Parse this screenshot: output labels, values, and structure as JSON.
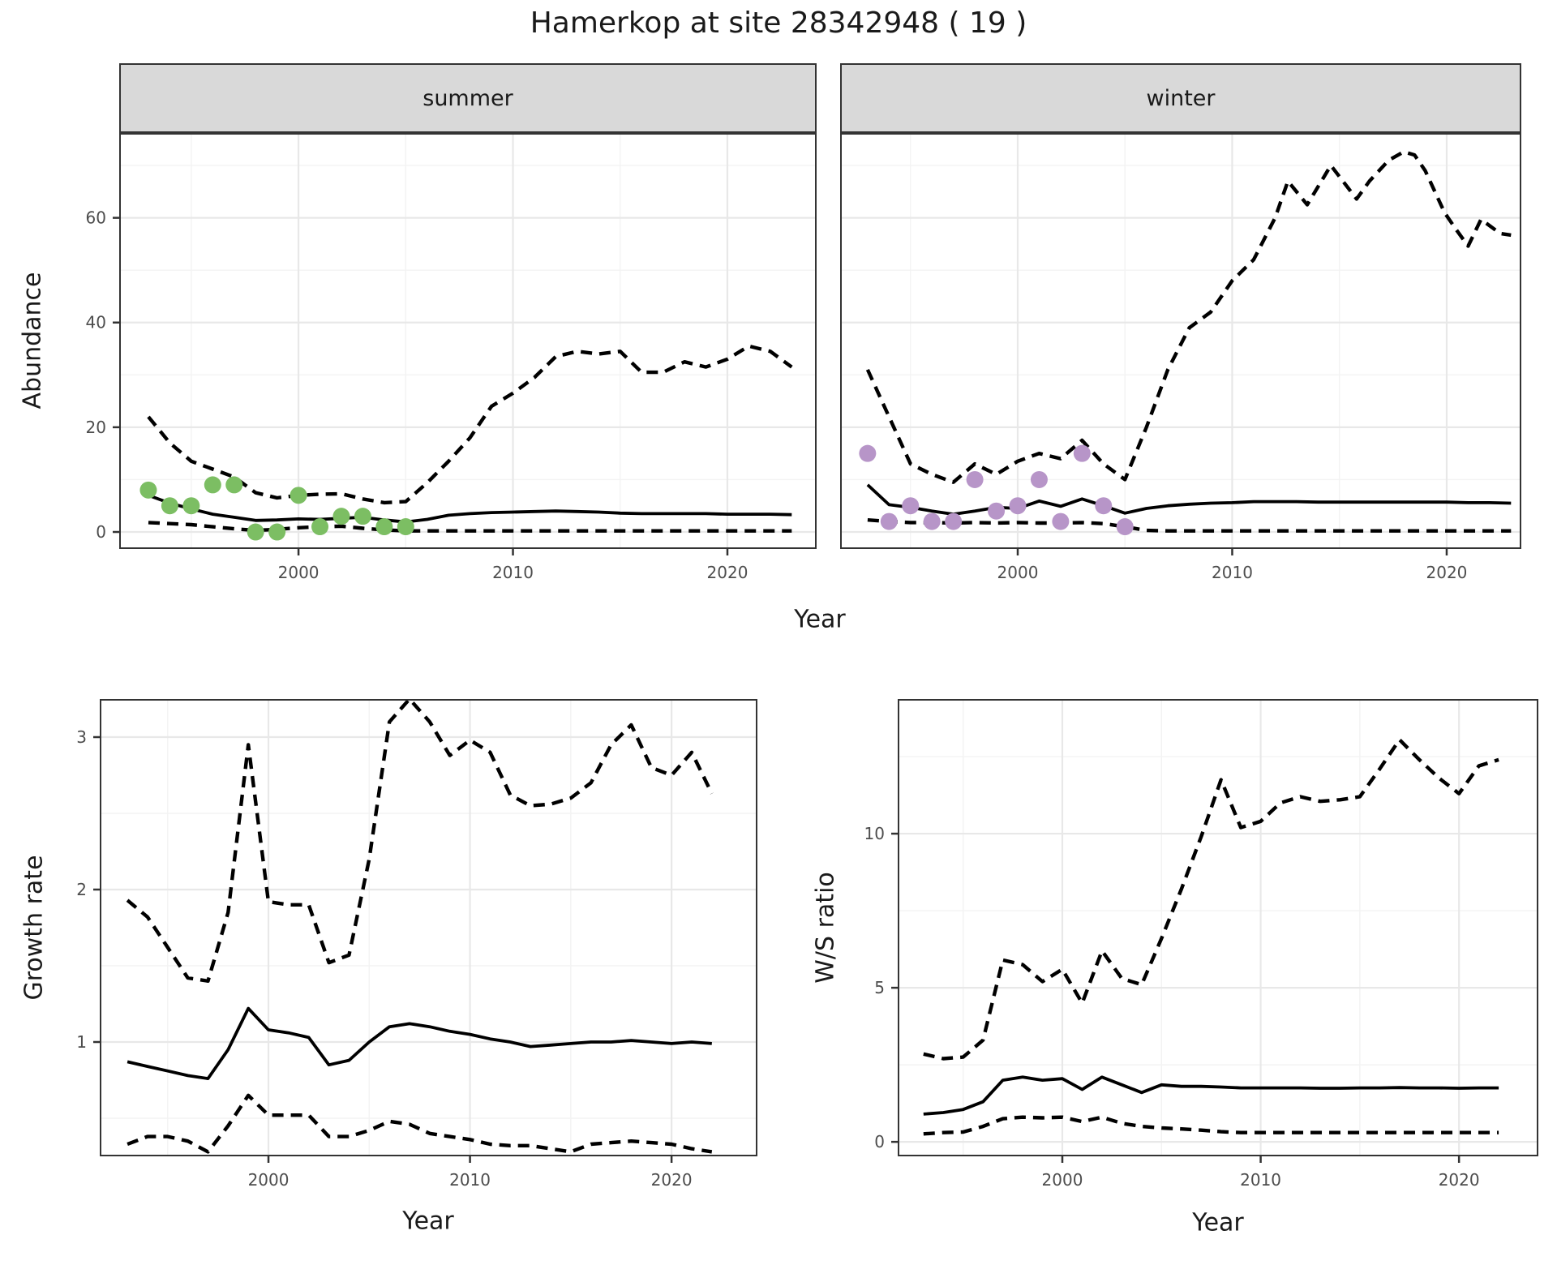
{
  "title": "Hamerkop at site 28342948 ( 19 )",
  "facets": [
    {
      "label": "summer"
    },
    {
      "label": "winter"
    }
  ],
  "axis_labels": {
    "abundance": "Abundance",
    "year": "Year",
    "growth": "Growth rate",
    "ws": "W/S ratio"
  },
  "colors": {
    "summer_point": "#7cbe63",
    "winter_point": "#b795c8",
    "line": "#000000",
    "grid_major": "#e8e8e8",
    "grid_minor": "#f3f3f3",
    "strip_bg": "#d9d9d9",
    "tick_text": "#4d4d4d",
    "panel_border": "#333333"
  },
  "chart_data": [
    {
      "type": "line",
      "facet": "summer",
      "xlabel": "Year",
      "ylabel": "Abundance",
      "xlim": [
        1991.64,
        2024.16
      ],
      "ylim": [
        -3.25,
        76.2
      ],
      "x_ticks": [
        2000,
        2010,
        2020
      ],
      "x_minor": [
        1995,
        2005,
        2015
      ],
      "y_ticks": [
        0,
        20,
        40,
        60
      ],
      "y_minor": [
        10,
        30,
        50,
        70
      ],
      "series": [
        {
          "name": "upper-ci",
          "style": "dashed",
          "x": [
            1993,
            1994,
            1995,
            1996,
            1997,
            1998,
            1999,
            2000,
            2001,
            2002,
            2003,
            2004,
            2005,
            2006,
            2007,
            2008,
            2009,
            2010,
            2011,
            2012,
            2013,
            2014,
            2015,
            2016,
            2017,
            2018,
            2019,
            2020,
            2021,
            2022,
            2023
          ],
          "y": [
            22,
            17,
            13.5,
            12,
            10.5,
            7.5,
            6.5,
            7,
            7.2,
            7.3,
            6.3,
            5.6,
            5.8,
            9.4,
            13.5,
            18,
            24,
            26.5,
            29.5,
            33.5,
            34.5,
            34,
            34.5,
            30.5,
            30.5,
            32.5,
            31.5,
            33,
            35.5,
            34.5,
            31.5
          ]
        },
        {
          "name": "median",
          "style": "solid",
          "x": [
            1993,
            1994,
            1995,
            1996,
            1997,
            1998,
            1999,
            2000,
            2001,
            2002,
            2003,
            2004,
            2005,
            2006,
            2007,
            2008,
            2009,
            2010,
            2011,
            2012,
            2013,
            2014,
            2015,
            2016,
            2017,
            2018,
            2019,
            2020,
            2021,
            2022,
            2023
          ],
          "y": [
            7,
            5.5,
            4.4,
            3.4,
            2.8,
            2.2,
            2.3,
            2.5,
            2.4,
            2.6,
            2.8,
            2.3,
            1.9,
            2.4,
            3.2,
            3.5,
            3.7,
            3.8,
            3.9,
            4,
            3.9,
            3.8,
            3.6,
            3.5,
            3.5,
            3.5,
            3.5,
            3.4,
            3.4,
            3.4,
            3.3
          ]
        },
        {
          "name": "lower-ci",
          "style": "dashed",
          "x": [
            1993,
            1994,
            1995,
            1996,
            1997,
            1998,
            1999,
            2000,
            2001,
            2002,
            2003,
            2004,
            2005,
            2006,
            2007,
            2008,
            2009,
            2010,
            2011,
            2012,
            2013,
            2014,
            2015,
            2016,
            2017,
            2018,
            2019,
            2020,
            2021,
            2022,
            2023
          ],
          "y": [
            1.8,
            1.6,
            1.4,
            1,
            0.6,
            0.3,
            0.5,
            0.8,
            1,
            1.1,
            0.7,
            0.4,
            0.2,
            0.2,
            0.2,
            0.2,
            0.2,
            0.2,
            0.2,
            0.2,
            0.2,
            0.2,
            0.2,
            0.2,
            0.2,
            0.2,
            0.2,
            0.2,
            0.2,
            0.2,
            0.2
          ]
        },
        {
          "name": "observed",
          "style": "points",
          "color": "#7cbe63",
          "x": [
            1993,
            1994,
            1995,
            1996,
            1997,
            1998,
            1999,
            2000,
            2001,
            2002,
            2003,
            2004,
            2005
          ],
          "y": [
            8,
            5,
            5,
            9,
            9,
            0,
            0,
            7,
            1,
            3,
            3,
            1,
            1
          ]
        }
      ]
    },
    {
      "type": "line",
      "facet": "winter",
      "xlabel": "Year",
      "ylabel": "Abundance",
      "xlim": [
        1991.72,
        2023.48
      ],
      "ylim": [
        -3.25,
        76.2
      ],
      "x_ticks": [
        2000,
        2010,
        2020
      ],
      "x_minor": [
        1995,
        2005,
        2015
      ],
      "y_ticks": [
        0,
        20,
        40,
        60
      ],
      "y_minor": [
        10,
        30,
        50,
        70
      ],
      "series": [
        {
          "name": "upper-ci",
          "style": "dashed",
          "x": [
            1993,
            1994,
            1995,
            1996,
            1997,
            1998,
            1999,
            2000,
            2001,
            2002,
            2003,
            2004,
            2005,
            2006,
            2007,
            2008,
            2009,
            2010,
            2011,
            2012,
            2012.6,
            2013.5,
            2014.6,
            2015.8,
            2016.4,
            2017.3,
            2018,
            2018.5,
            2019,
            2019.9,
            2020.4,
            2021,
            2021.6,
            2022.5,
            2023
          ],
          "y": [
            31,
            22,
            13,
            11,
            9.5,
            13,
            11,
            13.5,
            15,
            14,
            17.5,
            13,
            10,
            20,
            31,
            39,
            42,
            48,
            52,
            60,
            67,
            62.5,
            70,
            63.6,
            67,
            71,
            72.6,
            72,
            69,
            61,
            58,
            54.6,
            59.7,
            57,
            56.7
          ]
        },
        {
          "name": "median",
          "style": "solid",
          "x": [
            1993,
            1994,
            1995,
            1996,
            1997,
            1998,
            1999,
            2000,
            2001,
            2002,
            2003,
            2004,
            2005,
            2006,
            2007,
            2008,
            2009,
            2010,
            2011,
            2012,
            2013,
            2014,
            2015,
            2016,
            2017,
            2018,
            2019,
            2020,
            2021,
            2022,
            2023
          ],
          "y": [
            9,
            5.2,
            4.7,
            4,
            3.4,
            4,
            4.7,
            4.5,
            5.9,
            4.9,
            6.3,
            5,
            3.6,
            4.5,
            5,
            5.3,
            5.5,
            5.6,
            5.8,
            5.8,
            5.8,
            5.7,
            5.7,
            5.7,
            5.7,
            5.7,
            5.7,
            5.7,
            5.6,
            5.6,
            5.5
          ]
        },
        {
          "name": "lower-ci",
          "style": "dashed",
          "x": [
            1993,
            1994,
            1995,
            1996,
            1997,
            1998,
            1999,
            2000,
            2001,
            2002,
            2003,
            2004,
            2005,
            2006,
            2007,
            2008,
            2009,
            2010,
            2011,
            2012,
            2013,
            2014,
            2015,
            2016,
            2017,
            2018,
            2019,
            2020,
            2021,
            2022,
            2023
          ],
          "y": [
            2.3,
            2,
            1.8,
            1.8,
            1.7,
            1.8,
            1.7,
            1.8,
            1.7,
            1.7,
            1.8,
            1.6,
            1,
            0.3,
            0.2,
            0.2,
            0.2,
            0.2,
            0.2,
            0.2,
            0.2,
            0.2,
            0.2,
            0.2,
            0.2,
            0.2,
            0.2,
            0.2,
            0.2,
            0.2,
            0.2
          ]
        },
        {
          "name": "observed",
          "style": "points",
          "color": "#b795c8",
          "x": [
            1993,
            1994,
            1995,
            1996,
            1997,
            1998,
            1999,
            2000,
            2001,
            2002,
            2003,
            2004,
            2005
          ],
          "y": [
            15,
            2,
            5,
            2,
            2,
            10,
            4,
            5,
            10,
            2,
            15,
            5,
            1
          ]
        }
      ]
    },
    {
      "type": "line",
      "facet": null,
      "xlabel": "Year",
      "ylabel": "Growth rate",
      "xlim": [
        1991.63,
        2024.26
      ],
      "ylim": [
        0.25,
        3.25
      ],
      "x_ticks": [
        2000,
        2010,
        2020
      ],
      "x_minor": [
        1995,
        2005,
        2015
      ],
      "y_ticks": [
        1,
        2,
        3
      ],
      "y_minor": [
        0.5,
        1.5,
        2.5
      ],
      "series": [
        {
          "name": "upper-ci",
          "style": "dashed",
          "x": [
            1993,
            1994,
            1995,
            1996,
            1997,
            1998,
            1999,
            2000,
            2001,
            2002,
            2003,
            2004,
            2005,
            2006,
            2007,
            2008,
            2009,
            2010,
            2011,
            2012,
            2013,
            2014,
            2015,
            2016,
            2017,
            2018,
            2019,
            2020,
            2021,
            2022
          ],
          "y": [
            1.93,
            1.82,
            1.62,
            1.42,
            1.4,
            1.85,
            2.95,
            1.92,
            1.9,
            1.9,
            1.52,
            1.57,
            2.2,
            3.1,
            3.25,
            3.1,
            2.88,
            2.98,
            2.9,
            2.62,
            2.55,
            2.56,
            2.6,
            2.7,
            2.95,
            3.08,
            2.8,
            2.75,
            2.9,
            2.63
          ]
        },
        {
          "name": "median",
          "style": "solid",
          "x": [
            1993,
            1994,
            1995,
            1996,
            1997,
            1998,
            1999,
            2000,
            2001,
            2002,
            2003,
            2004,
            2005,
            2006,
            2007,
            2008,
            2009,
            2010,
            2011,
            2012,
            2013,
            2014,
            2015,
            2016,
            2017,
            2018,
            2019,
            2020,
            2021,
            2022
          ],
          "y": [
            0.87,
            0.84,
            0.81,
            0.78,
            0.76,
            0.95,
            1.22,
            1.08,
            1.06,
            1.03,
            0.85,
            0.88,
            1,
            1.1,
            1.12,
            1.1,
            1.07,
            1.05,
            1.02,
            1,
            0.97,
            0.98,
            0.99,
            1,
            1,
            1.01,
            1,
            0.99,
            1,
            0.99
          ]
        },
        {
          "name": "lower-ci",
          "style": "dashed",
          "x": [
            1993,
            1994,
            1995,
            1996,
            1997,
            1998,
            1999,
            2000,
            2001,
            2002,
            2003,
            2004,
            2005,
            2006,
            2007,
            2008,
            2009,
            2010,
            2011,
            2012,
            2013,
            2014,
            2015,
            2016,
            2017,
            2018,
            2019,
            2020,
            2021,
            2022
          ],
          "y": [
            0.33,
            0.38,
            0.38,
            0.35,
            0.28,
            0.45,
            0.65,
            0.52,
            0.52,
            0.52,
            0.38,
            0.38,
            0.42,
            0.48,
            0.46,
            0.4,
            0.38,
            0.36,
            0.33,
            0.32,
            0.32,
            0.3,
            0.28,
            0.33,
            0.34,
            0.35,
            0.34,
            0.33,
            0.3,
            0.28
          ]
        }
      ]
    },
    {
      "type": "line",
      "facet": null,
      "xlabel": "Year",
      "ylabel": "W/S ratio",
      "xlim": [
        1991.7,
        2024.0
      ],
      "ylim": [
        -0.47,
        14.37
      ],
      "x_ticks": [
        2000,
        2010,
        2020
      ],
      "x_minor": [
        1995,
        2005,
        2015
      ],
      "y_ticks": [
        0,
        5,
        10
      ],
      "y_minor": [
        2.5,
        7.5,
        12.5
      ],
      "series": [
        {
          "name": "upper-ci",
          "style": "dashed",
          "x": [
            1993,
            1994,
            1995,
            1996,
            1997,
            1998,
            1999,
            2000,
            2001,
            2002,
            2003,
            2004,
            2005,
            2006,
            2007,
            2008,
            2009,
            2010,
            2011,
            2012,
            2013,
            2014,
            2015,
            2016,
            2017,
            2018,
            2019,
            2020,
            2021,
            2022
          ],
          "y": [
            2.85,
            2.7,
            2.75,
            3.3,
            5.9,
            5.75,
            5.2,
            5.6,
            4.5,
            6.2,
            5.3,
            5.1,
            6.6,
            8.2,
            9.9,
            11.75,
            10.2,
            10.4,
            11,
            11.2,
            11.05,
            11.1,
            11.2,
            12.1,
            13.05,
            12.4,
            11.8,
            11.3,
            12.2,
            12.4
          ]
        },
        {
          "name": "median",
          "style": "solid",
          "x": [
            1993,
            1994,
            1995,
            1996,
            1997,
            1998,
            1999,
            2000,
            2001,
            2002,
            2003,
            2004,
            2005,
            2006,
            2007,
            2008,
            2009,
            2010,
            2011,
            2012,
            2013,
            2014,
            2015,
            2016,
            2017,
            2018,
            2019,
            2020,
            2021,
            2022
          ],
          "y": [
            0.9,
            0.95,
            1.05,
            1.3,
            2,
            2.1,
            2,
            2.05,
            1.7,
            2.1,
            1.85,
            1.6,
            1.85,
            1.8,
            1.8,
            1.78,
            1.75,
            1.75,
            1.75,
            1.75,
            1.74,
            1.74,
            1.75,
            1.75,
            1.76,
            1.75,
            1.75,
            1.74,
            1.75,
            1.75
          ]
        },
        {
          "name": "lower-ci",
          "style": "dashed",
          "x": [
            1993,
            1994,
            1995,
            1996,
            1997,
            1998,
            1999,
            2000,
            2001,
            2002,
            2003,
            2004,
            2005,
            2006,
            2007,
            2008,
            2009,
            2010,
            2011,
            2012,
            2013,
            2014,
            2015,
            2016,
            2017,
            2018,
            2019,
            2020,
            2021,
            2022
          ],
          "y": [
            0.26,
            0.3,
            0.32,
            0.5,
            0.75,
            0.8,
            0.78,
            0.8,
            0.66,
            0.8,
            0.6,
            0.5,
            0.45,
            0.42,
            0.38,
            0.33,
            0.3,
            0.3,
            0.3,
            0.3,
            0.3,
            0.3,
            0.3,
            0.3,
            0.3,
            0.3,
            0.3,
            0.3,
            0.3,
            0.3
          ]
        }
      ]
    }
  ]
}
